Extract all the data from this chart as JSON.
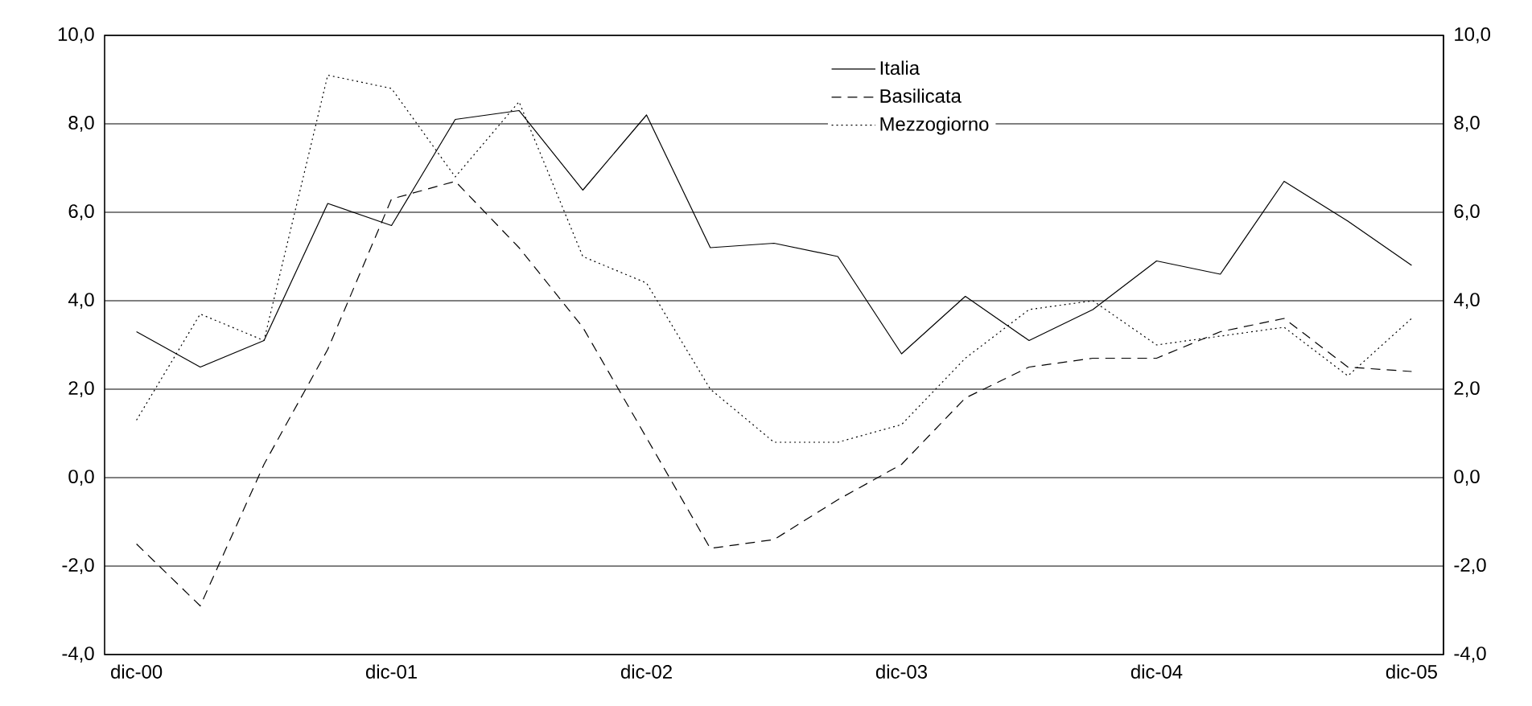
{
  "chart_data": {
    "type": "line",
    "categories": [
      "dic-00",
      null,
      null,
      null,
      "dic-01",
      null,
      null,
      null,
      "dic-02",
      null,
      null,
      null,
      "dic-03",
      null,
      null,
      null,
      "dic-04",
      null,
      null,
      null,
      "dic-05"
    ],
    "series": [
      {
        "name": "Italia",
        "color": "#000000",
        "line_style": "solid",
        "values": [
          3.3,
          2.5,
          3.1,
          6.2,
          5.7,
          8.1,
          8.3,
          6.5,
          8.2,
          5.2,
          5.3,
          5.0,
          2.8,
          4.1,
          3.1,
          3.8,
          4.9,
          4.6,
          6.7,
          5.8,
          4.8
        ]
      },
      {
        "name": "Basilicata",
        "color": "#000000",
        "line_style": "dashed",
        "values": [
          -1.5,
          -2.9,
          0.3,
          2.9,
          6.3,
          6.7,
          5.2,
          3.4,
          0.9,
          -1.6,
          -1.4,
          -0.5,
          0.3,
          1.8,
          2.5,
          2.7,
          2.7,
          3.3,
          3.6,
          2.5,
          2.4
        ]
      },
      {
        "name": "Mezzogiorno",
        "color": "#000000",
        "line_style": "dotted",
        "values": [
          1.3,
          3.7,
          3.1,
          9.1,
          8.8,
          6.8,
          8.5,
          5.0,
          4.4,
          2.0,
          0.8,
          0.8,
          1.2,
          2.7,
          3.8,
          4.0,
          3.0,
          3.2,
          3.4,
          2.3,
          3.6
        ]
      }
    ],
    "ylim": [
      -4,
      10
    ],
    "yticks": [
      {
        "value": -4,
        "label": "-4,0"
      },
      {
        "value": -2,
        "label": "-2,0"
      },
      {
        "value": 0,
        "label": "0,0"
      },
      {
        "value": 2,
        "label": "2,0"
      },
      {
        "value": 4,
        "label": "4,0"
      },
      {
        "value": 6,
        "label": "6,0"
      },
      {
        "value": 8,
        "label": "8,0"
      },
      {
        "value": 10,
        "label": "10,0"
      }
    ],
    "y2lim": [
      -4,
      10
    ],
    "y2ticks": [
      {
        "value": -4,
        "label": "-4,0"
      },
      {
        "value": -2,
        "label": "-2,0"
      },
      {
        "value": 0,
        "label": "0,0"
      },
      {
        "value": 2,
        "label": "2,0"
      },
      {
        "value": 4,
        "label": "4,0"
      },
      {
        "value": 6,
        "label": "6,0"
      },
      {
        "value": 8,
        "label": "8,0"
      },
      {
        "value": 10,
        "label": "10,0"
      }
    ],
    "grid": "y",
    "legend": "top",
    "marker": "none"
  }
}
